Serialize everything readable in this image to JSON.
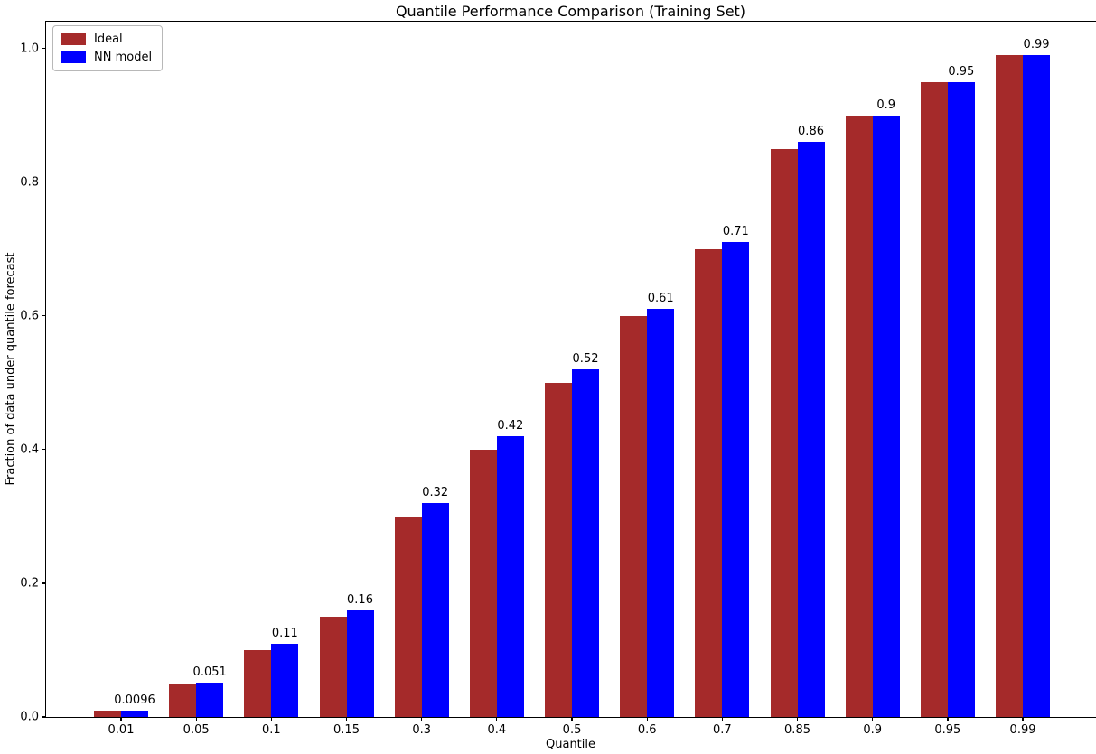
{
  "chart_data": {
    "type": "bar",
    "title": "Quantile Performance Comparison (Training Set)",
    "xlabel": "Quantile",
    "ylabel": "Fraction of data under quantile forecast",
    "categories": [
      "0.01",
      "0.05",
      "0.1",
      "0.15",
      "0.3",
      "0.4",
      "0.5",
      "0.6",
      "0.7",
      "0.85",
      "0.9",
      "0.95",
      "0.99"
    ],
    "series": [
      {
        "name": "Ideal",
        "color": "#a52a2a",
        "values": [
          0.01,
          0.05,
          0.1,
          0.15,
          0.3,
          0.4,
          0.5,
          0.6,
          0.7,
          0.85,
          0.9,
          0.95,
          0.99
        ]
      },
      {
        "name": "NN model",
        "color": "#0000ff",
        "values": [
          0.0096,
          0.051,
          0.11,
          0.16,
          0.32,
          0.42,
          0.52,
          0.61,
          0.71,
          0.86,
          0.9,
          0.95,
          0.99
        ]
      }
    ],
    "bar_labels": [
      "0.0096",
      "0.051",
      "0.11",
      "0.16",
      "0.32",
      "0.42",
      "0.52",
      "0.61",
      "0.71",
      "0.86",
      "0.9",
      "0.95",
      "0.99"
    ],
    "yticks": [
      "0.0",
      "0.2",
      "0.4",
      "0.6",
      "0.8",
      "1.0"
    ],
    "ylim": [
      0,
      1.04
    ],
    "legend_position": "upper left",
    "grid": false,
    "background_color": "#ffffff",
    "text_color": "#000000"
  }
}
